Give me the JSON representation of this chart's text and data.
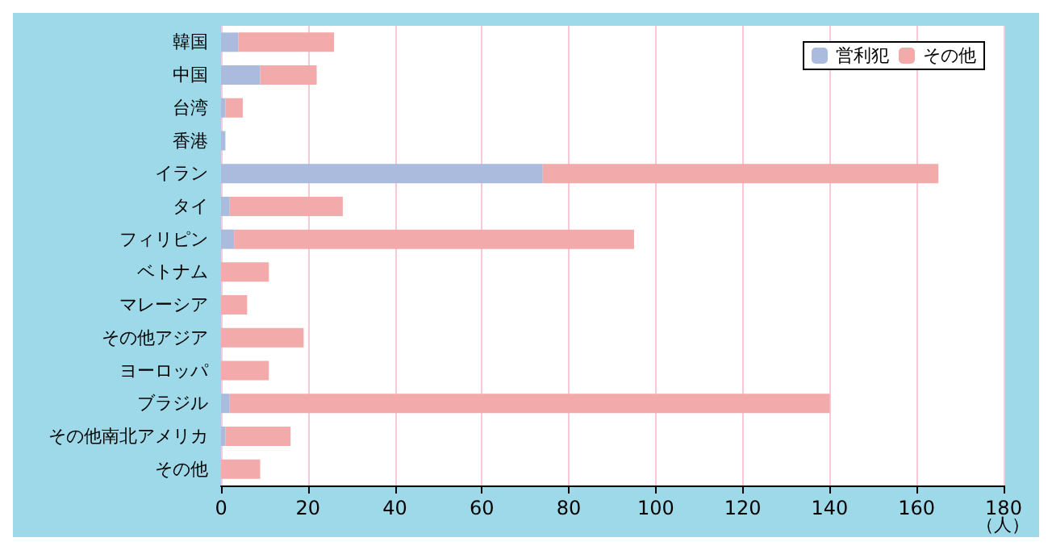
{
  "chart_data": {
    "type": "bar",
    "orientation": "horizontal",
    "stacked": true,
    "categories": [
      "韓国",
      "中国",
      "台湾",
      "香港",
      "イラン",
      "タイ",
      "フィリピン",
      "ベトナム",
      "マレーシア",
      "その他アジア",
      "ヨーロッパ",
      "ブラジル",
      "その他南北アメリカ",
      "その他"
    ],
    "series": [
      {
        "name": "営利犯",
        "color": "#aabbdd",
        "values": [
          4,
          9,
          1,
          1,
          74,
          2,
          3,
          0,
          0,
          0,
          0,
          2,
          1,
          0
        ]
      },
      {
        "name": "その他",
        "color": "#f2aaaa",
        "values": [
          22,
          13,
          4,
          0,
          91,
          26,
          92,
          11,
          6,
          19,
          11,
          138,
          15,
          9
        ]
      }
    ],
    "xlim": [
      0,
      180
    ],
    "xticks": [
      0,
      20,
      40,
      60,
      80,
      100,
      120,
      140,
      160,
      180
    ],
    "xlabel": "（人）",
    "grid": "x",
    "legend": "top right"
  }
}
